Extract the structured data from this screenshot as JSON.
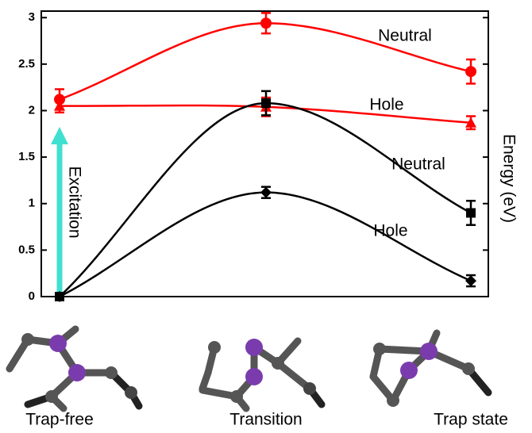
{
  "chart_data": {
    "type": "line",
    "categories": [
      "Trap-free",
      "Transition",
      "Trap state"
    ],
    "ylim": [
      0,
      3.07
    ],
    "yticks": [
      0,
      0.5,
      1,
      1.5,
      2,
      2.5,
      3
    ],
    "ylabel": "Energy (eV)",
    "annotation": "Excitation",
    "series": [
      {
        "name": "Neutral",
        "color": "#ff0000",
        "marker": "circle",
        "values": [
          2.12,
          2.94,
          2.42
        ],
        "errors": [
          0.11,
          0.11,
          0.13
        ]
      },
      {
        "name": "Hole",
        "color": "#ff0000",
        "marker": "triangle",
        "values": [
          2.05,
          2.04,
          1.87
        ],
        "errors": [
          0.07,
          0.1,
          0.07
        ]
      },
      {
        "name": "Neutral",
        "color": "#000000",
        "marker": "square",
        "values": [
          0,
          2.08,
          0.9
        ],
        "errors": [
          0,
          0.13,
          0.13
        ]
      },
      {
        "name": "Hole",
        "color": "#000000",
        "marker": "diamond",
        "values": [
          0,
          1.12,
          0.17
        ],
        "errors": [
          0,
          0.06,
          0.06
        ]
      }
    ]
  }
}
